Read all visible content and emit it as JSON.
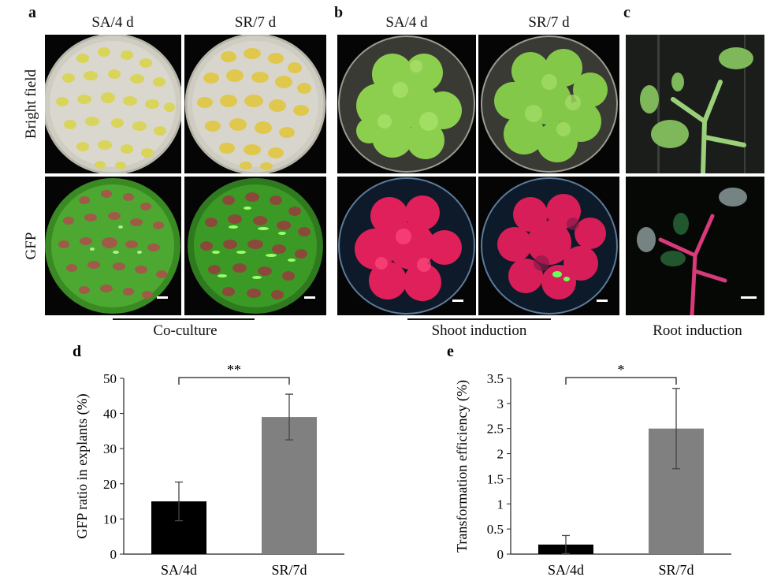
{
  "panels": {
    "a": {
      "letter": "a",
      "col1": "SA/4 d",
      "col2": "SR/7 d",
      "row_top": "Bright field",
      "row_bottom": "GFP",
      "caption": "Co-culture"
    },
    "b": {
      "letter": "b",
      "col1": "SA/4 d",
      "col2": "SR/7 d",
      "caption": "Shoot induction"
    },
    "c": {
      "letter": "c",
      "caption": "Root induction"
    }
  },
  "colors": {
    "explant_yellow": "#d9d45a",
    "plate_bg": "#d8d6cc",
    "gfp_green": "#3fbf2a",
    "shoot_green": "#8ccf4e",
    "shoot_red": "#e0205a",
    "bar_black": "#000000",
    "bar_gray": "#808080"
  },
  "chart_data": [
    {
      "panel": "d",
      "type": "bar",
      "categories": [
        "SA/4d",
        "SR/7d"
      ],
      "values": [
        15,
        39
      ],
      "errors": [
        5.5,
        6.5
      ],
      "colors": [
        "#000000",
        "#808080"
      ],
      "ylabel": "GFP ratio in explants (%)",
      "ylim": [
        0,
        50
      ],
      "yticks": [
        "0",
        "10",
        "20",
        "30",
        "40",
        "50"
      ],
      "significance": "**",
      "grid": false
    },
    {
      "panel": "e",
      "type": "bar",
      "categories": [
        "SA/4d",
        "SR/7d"
      ],
      "values": [
        0.19,
        2.5
      ],
      "errors": [
        0.18,
        0.8
      ],
      "colors": [
        "#000000",
        "#808080"
      ],
      "ylabel": "Transformation efficiency (%)",
      "ylim": [
        0,
        3.5
      ],
      "yticks": [
        "0",
        "0.5",
        "1",
        "1.5",
        "2",
        "2.5",
        "3",
        "3.5"
      ],
      "significance": "*",
      "grid": false
    }
  ]
}
